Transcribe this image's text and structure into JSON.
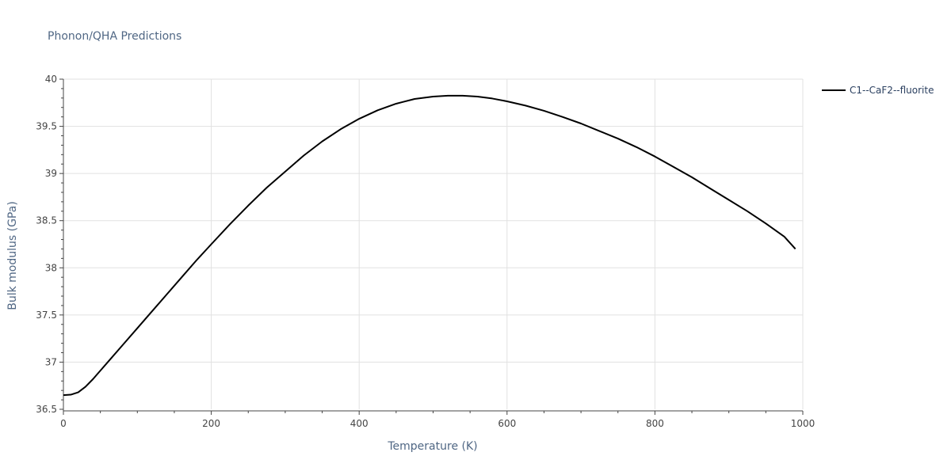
{
  "chart_data": {
    "type": "line",
    "title": "Phonon/QHA Predictions",
    "xlabel": "Temperature (K)",
    "ylabel": "Bulk modulus (GPa)",
    "xlim": [
      0,
      1000
    ],
    "ylim": [
      36.5,
      40
    ],
    "x_ticks": [
      0,
      200,
      400,
      600,
      800,
      1000
    ],
    "y_ticks": [
      36.5,
      37,
      37.5,
      38,
      38.5,
      39,
      39.5,
      40
    ],
    "x_tick_labels": [
      "0",
      "200",
      "400",
      "600",
      "800",
      "1000"
    ],
    "y_tick_labels": [
      "36.5",
      "37",
      "37.5",
      "38",
      "38.5",
      "39",
      "39.5",
      "40"
    ],
    "grid": true,
    "legend_position": "top-right",
    "series": [
      {
        "name": "C1--CaF2--fluorite",
        "color": "#000000",
        "x": [
          0,
          10,
          20,
          30,
          40,
          50,
          60,
          80,
          100,
          120,
          140,
          160,
          180,
          200,
          225,
          250,
          275,
          300,
          325,
          350,
          375,
          400,
          425,
          450,
          475,
          500,
          520,
          540,
          560,
          580,
          600,
          625,
          650,
          675,
          700,
          725,
          750,
          775,
          800,
          825,
          850,
          875,
          900,
          925,
          950,
          975,
          990
        ],
        "y": [
          36.65,
          36.655,
          36.68,
          36.74,
          36.82,
          36.91,
          37.0,
          37.18,
          37.36,
          37.54,
          37.72,
          37.9,
          38.08,
          38.25,
          38.46,
          38.66,
          38.85,
          39.02,
          39.19,
          39.34,
          39.47,
          39.58,
          39.67,
          39.74,
          39.79,
          39.815,
          39.825,
          39.825,
          39.815,
          39.795,
          39.765,
          39.72,
          39.665,
          39.6,
          39.53,
          39.45,
          39.37,
          39.28,
          39.18,
          39.07,
          38.96,
          38.84,
          38.72,
          38.6,
          38.47,
          38.33,
          38.2
        ]
      }
    ]
  }
}
